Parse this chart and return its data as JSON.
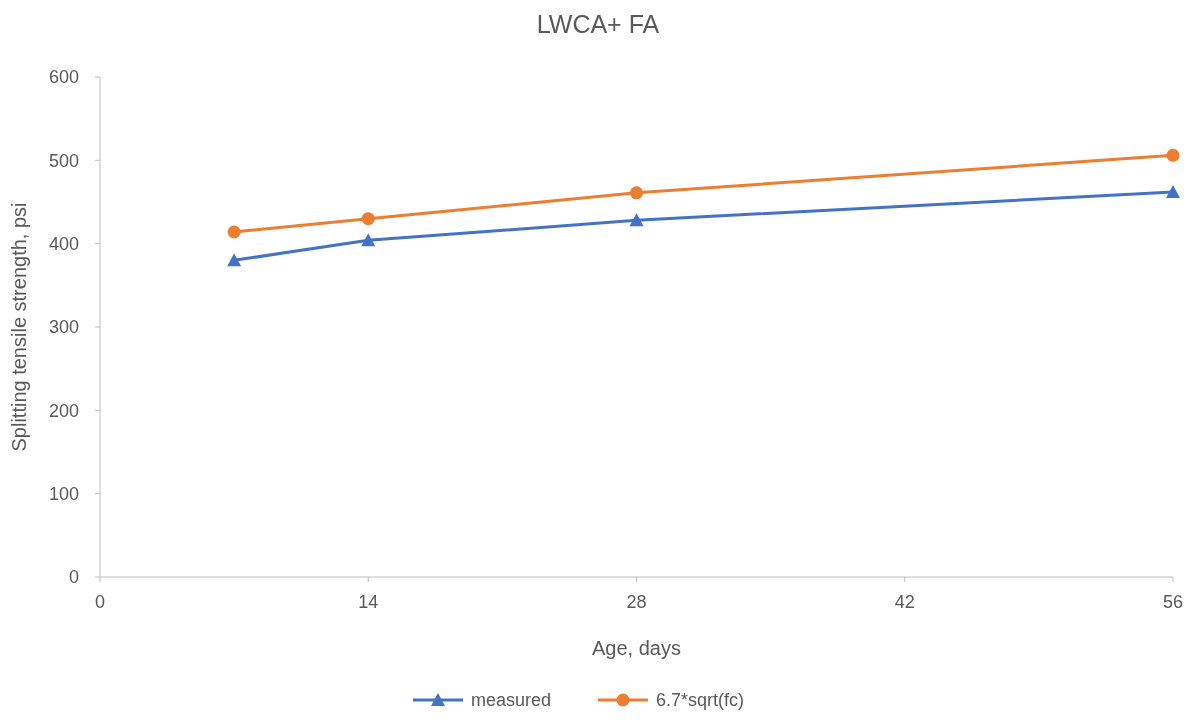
{
  "chart_data": {
    "type": "line",
    "title": "LWCA+ FA",
    "xlabel": "Age, days",
    "ylabel": "Splitting tensile strength, psi",
    "xlim": [
      0,
      56
    ],
    "xticks": [
      0,
      14,
      28,
      42,
      56
    ],
    "ylim": [
      0,
      600
    ],
    "yticks": [
      0,
      100,
      200,
      300,
      400,
      500,
      600
    ],
    "x": [
      7,
      14,
      28,
      56
    ],
    "series": [
      {
        "name": "measured",
        "color": "#4472c4",
        "values": [
          380,
          404,
          428,
          462
        ],
        "marker": "triangle"
      },
      {
        "name": "6.7*sqrt(fc)",
        "color": "#ed7d31",
        "values": [
          414,
          430,
          461,
          506
        ],
        "marker": "circle"
      }
    ],
    "grid": false,
    "legend": "bottom",
    "line_style": "solid"
  }
}
